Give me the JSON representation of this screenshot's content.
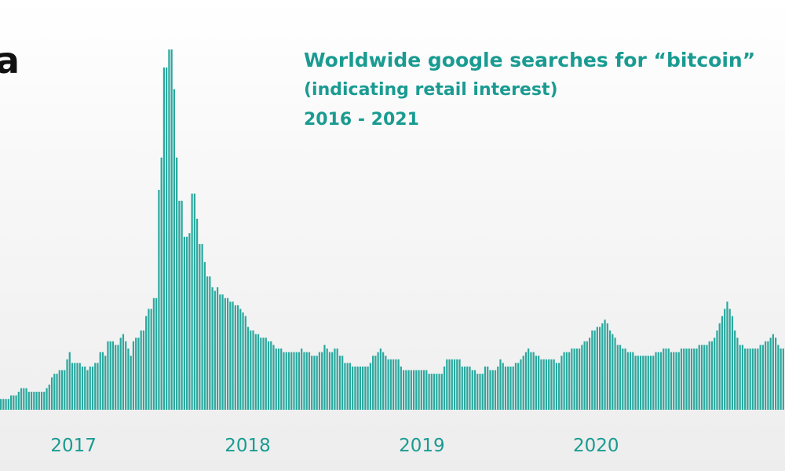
{
  "logo": {
    "text": "a"
  },
  "chart_data": {
    "type": "bar",
    "title": "Worldwide google searches for “bitcoin”",
    "subtitle_lines": [
      "(indicating retail interest)",
      "2016 - 2021"
    ],
    "xlabel": "",
    "ylabel": "",
    "grid": false,
    "legend": "none",
    "bar_color": "#2aa89e",
    "ylim": [
      0,
      100
    ],
    "x_tick_labels": [
      "2017",
      "2018",
      "2019",
      "2020"
    ],
    "x_tick_positions": [
      "2017-01-01",
      "2018-01-01",
      "2019-01-01",
      "2020-01-01"
    ],
    "x_start": "2016-07-31",
    "x_end": "2021-01-31",
    "values": [
      3,
      3,
      3,
      3,
      4,
      4,
      4,
      5,
      6,
      6,
      6,
      5,
      5,
      5,
      5,
      5,
      5,
      5,
      6,
      7,
      9,
      10,
      10,
      11,
      11,
      11,
      14,
      16,
      13,
      13,
      13,
      13,
      12,
      12,
      11,
      12,
      12,
      13,
      13,
      16,
      16,
      15,
      19,
      19,
      19,
      18,
      18,
      20,
      21,
      19,
      17,
      15,
      19,
      20,
      20,
      22,
      22,
      26,
      28,
      28,
      31,
      31,
      61,
      70,
      95,
      95,
      100,
      100,
      89,
      70,
      58,
      58,
      48,
      48,
      49,
      60,
      60,
      53,
      46,
      46,
      41,
      37,
      37,
      34,
      33,
      34,
      32,
      32,
      31,
      31,
      30,
      30,
      29,
      29,
      28,
      27,
      26,
      23,
      22,
      22,
      21,
      21,
      20,
      20,
      20,
      19,
      19,
      18,
      17,
      17,
      17,
      16,
      16,
      16,
      16,
      16,
      16,
      16,
      17,
      16,
      16,
      16,
      15,
      15,
      15,
      16,
      16,
      18,
      17,
      16,
      16,
      17,
      17,
      15,
      15,
      13,
      13,
      13,
      12,
      12,
      12,
      12,
      12,
      12,
      12,
      13,
      15,
      15,
      16,
      17,
      16,
      15,
      14,
      14,
      14,
      14,
      14,
      12,
      11,
      11,
      11,
      11,
      11,
      11,
      11,
      11,
      11,
      11,
      10,
      10,
      10,
      10,
      10,
      10,
      12,
      14,
      14,
      14,
      14,
      14,
      14,
      12,
      12,
      12,
      12,
      11,
      11,
      10,
      10,
      10,
      12,
      12,
      11,
      11,
      11,
      12,
      14,
      13,
      12,
      12,
      12,
      12,
      13,
      13,
      14,
      15,
      16,
      17,
      16,
      16,
      15,
      15,
      14,
      14,
      14,
      14,
      14,
      14,
      13,
      13,
      15,
      16,
      16,
      16,
      17,
      17,
      17,
      17,
      18,
      19,
      19,
      20,
      22,
      22,
      23,
      23,
      24,
      25,
      24,
      22,
      21,
      20,
      18,
      18,
      17,
      17,
      16,
      16,
      16,
      15,
      15,
      15,
      15,
      15,
      15,
      15,
      15,
      16,
      16,
      16,
      17,
      17,
      17,
      16,
      16,
      16,
      16,
      17,
      17,
      17,
      17,
      17,
      17,
      17,
      18,
      18,
      18,
      18,
      19,
      19,
      20,
      22,
      24,
      26,
      28,
      30,
      28,
      26,
      22,
      20,
      18,
      18,
      17,
      17,
      17,
      17,
      17,
      17,
      18,
      18,
      19,
      19,
      20,
      21,
      20,
      18,
      17,
      17
    ]
  }
}
